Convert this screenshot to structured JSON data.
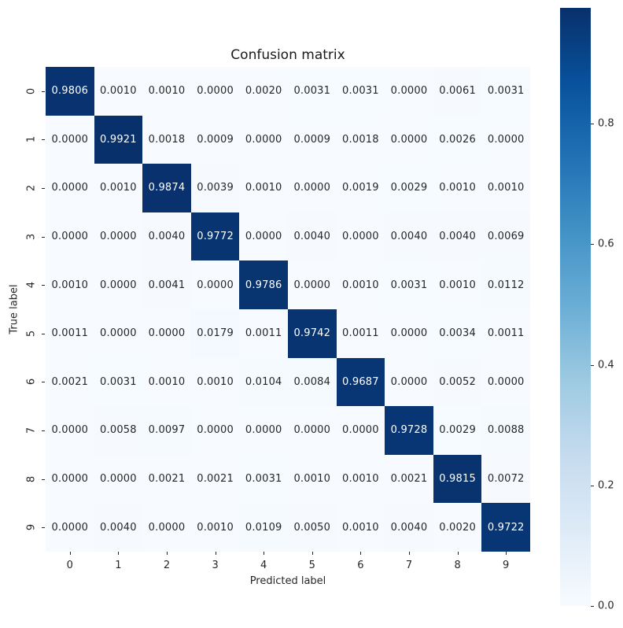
{
  "chart_data": {
    "type": "heatmap",
    "title": "Confusion matrix",
    "xlabel": "Predicted label",
    "ylabel": "True label",
    "x_tick_labels": [
      "0",
      "1",
      "2",
      "3",
      "4",
      "5",
      "6",
      "7",
      "8",
      "9"
    ],
    "y_tick_labels": [
      "0",
      "1",
      "2",
      "3",
      "4",
      "5",
      "6",
      "7",
      "8",
      "9"
    ],
    "matrix": [
      [
        0.9806,
        0.001,
        0.001,
        0.0,
        0.002,
        0.0031,
        0.0031,
        0.0,
        0.0061,
        0.0031
      ],
      [
        0.0,
        0.9921,
        0.0018,
        0.0009,
        0.0,
        0.0009,
        0.0018,
        0.0,
        0.0026,
        0.0
      ],
      [
        0.0,
        0.001,
        0.9874,
        0.0039,
        0.001,
        0.0,
        0.0019,
        0.0029,
        0.001,
        0.001
      ],
      [
        0.0,
        0.0,
        0.004,
        0.9772,
        0.0,
        0.004,
        0.0,
        0.004,
        0.004,
        0.0069
      ],
      [
        0.001,
        0.0,
        0.0041,
        0.0,
        0.9786,
        0.0,
        0.001,
        0.0031,
        0.001,
        0.0112
      ],
      [
        0.0011,
        0.0,
        0.0,
        0.0179,
        0.0011,
        0.9742,
        0.0011,
        0.0,
        0.0034,
        0.0011
      ],
      [
        0.0021,
        0.0031,
        0.001,
        0.001,
        0.0104,
        0.0084,
        0.9687,
        0.0,
        0.0052,
        0.0
      ],
      [
        0.0,
        0.0058,
        0.0097,
        0.0,
        0.0,
        0.0,
        0.0,
        0.9728,
        0.0029,
        0.0088
      ],
      [
        0.0,
        0.0,
        0.0021,
        0.0021,
        0.0031,
        0.001,
        0.001,
        0.0021,
        0.9815,
        0.0072
      ],
      [
        0.0,
        0.004,
        0.0,
        0.001,
        0.0109,
        0.005,
        0.001,
        0.004,
        0.002,
        0.9722
      ]
    ],
    "value_decimals": 4,
    "vmin": 0.0,
    "vmax": 0.9921,
    "colorbar_ticks": [
      0.0,
      0.2,
      0.4,
      0.6,
      0.8
    ],
    "colorbar_tick_decimals": 1,
    "colormap": "Blues",
    "colormap_stops": [
      "#f7fbff",
      "#deebf7",
      "#c6dbef",
      "#9ecae1",
      "#6baed6",
      "#4292c6",
      "#2171b5",
      "#08519c",
      "#08306b"
    ],
    "colors": {
      "annotation_dark": "#262626",
      "annotation_light": "#ffffff",
      "tick": "#262626",
      "title": "#1a1a1a",
      "background": "#ffffff"
    },
    "legend_position": "right-colorbar",
    "grid": false
  }
}
